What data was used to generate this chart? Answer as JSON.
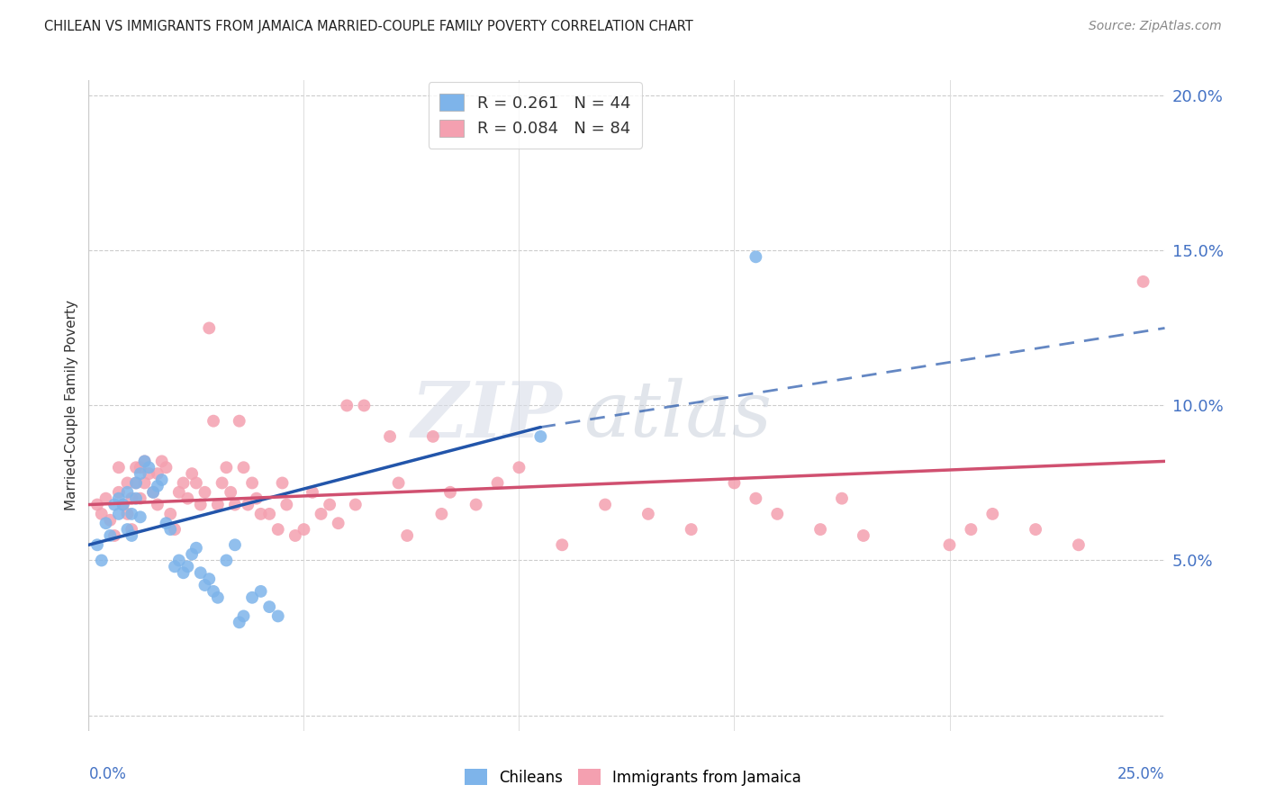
{
  "title": "CHILEAN VS IMMIGRANTS FROM JAMAICA MARRIED-COUPLE FAMILY POVERTY CORRELATION CHART",
  "source": "Source: ZipAtlas.com",
  "ylabel": "Married-Couple Family Poverty",
  "xlim": [
    0.0,
    0.25
  ],
  "ylim": [
    -0.005,
    0.205
  ],
  "plot_ylim": [
    0.0,
    0.2
  ],
  "yticks": [
    0.05,
    0.1,
    0.15,
    0.2
  ],
  "ytick_labels": [
    "5.0%",
    "10.0%",
    "15.0%",
    "20.0%"
  ],
  "chilean_color": "#7eb4ea",
  "jamaica_color": "#f4a0b0",
  "trendline_chilean_color": "#2255aa",
  "trendline_jamaica_color": "#d05070",
  "watermark_zip": "ZIP",
  "watermark_atlas": "atlas",
  "chilean_R": 0.261,
  "chilean_N": 44,
  "jamaica_R": 0.084,
  "jamaica_N": 84,
  "trend_chilean_x0": 0.0,
  "trend_chilean_y0": 0.055,
  "trend_chilean_x1": 0.105,
  "trend_chilean_y1": 0.093,
  "trend_chilean_dash_x1": 0.25,
  "trend_chilean_dash_y1": 0.125,
  "trend_jamaica_x0": 0.0,
  "trend_jamaica_y0": 0.068,
  "trend_jamaica_x1": 0.25,
  "trend_jamaica_y1": 0.082,
  "chilean_x": [
    0.002,
    0.003,
    0.004,
    0.005,
    0.006,
    0.007,
    0.007,
    0.008,
    0.009,
    0.009,
    0.01,
    0.01,
    0.011,
    0.011,
    0.012,
    0.012,
    0.013,
    0.014,
    0.015,
    0.016,
    0.017,
    0.018,
    0.019,
    0.02,
    0.021,
    0.022,
    0.023,
    0.024,
    0.025,
    0.026,
    0.027,
    0.028,
    0.029,
    0.03,
    0.032,
    0.034,
    0.035,
    0.036,
    0.038,
    0.04,
    0.042,
    0.044,
    0.105,
    0.155
  ],
  "chilean_y": [
    0.055,
    0.05,
    0.062,
    0.058,
    0.068,
    0.065,
    0.07,
    0.068,
    0.072,
    0.06,
    0.058,
    0.065,
    0.07,
    0.075,
    0.064,
    0.078,
    0.082,
    0.08,
    0.072,
    0.074,
    0.076,
    0.062,
    0.06,
    0.048,
    0.05,
    0.046,
    0.048,
    0.052,
    0.054,
    0.046,
    0.042,
    0.044,
    0.04,
    0.038,
    0.05,
    0.055,
    0.03,
    0.032,
    0.038,
    0.04,
    0.035,
    0.032,
    0.09,
    0.148
  ],
  "jamaica_x": [
    0.002,
    0.003,
    0.004,
    0.005,
    0.006,
    0.007,
    0.007,
    0.008,
    0.009,
    0.009,
    0.01,
    0.01,
    0.011,
    0.011,
    0.012,
    0.012,
    0.013,
    0.013,
    0.014,
    0.015,
    0.016,
    0.016,
    0.017,
    0.018,
    0.019,
    0.02,
    0.021,
    0.022,
    0.023,
    0.024,
    0.025,
    0.026,
    0.027,
    0.028,
    0.029,
    0.03,
    0.031,
    0.032,
    0.033,
    0.034,
    0.035,
    0.036,
    0.037,
    0.038,
    0.039,
    0.04,
    0.042,
    0.044,
    0.045,
    0.046,
    0.048,
    0.05,
    0.052,
    0.054,
    0.056,
    0.058,
    0.06,
    0.062,
    0.064,
    0.07,
    0.072,
    0.074,
    0.08,
    0.082,
    0.084,
    0.09,
    0.095,
    0.1,
    0.11,
    0.12,
    0.13,
    0.14,
    0.15,
    0.155,
    0.16,
    0.17,
    0.175,
    0.18,
    0.2,
    0.205,
    0.21,
    0.22,
    0.23,
    0.245
  ],
  "jamaica_y": [
    0.068,
    0.065,
    0.07,
    0.063,
    0.058,
    0.072,
    0.08,
    0.068,
    0.075,
    0.065,
    0.06,
    0.07,
    0.075,
    0.08,
    0.07,
    0.08,
    0.075,
    0.082,
    0.078,
    0.072,
    0.078,
    0.068,
    0.082,
    0.08,
    0.065,
    0.06,
    0.072,
    0.075,
    0.07,
    0.078,
    0.075,
    0.068,
    0.072,
    0.125,
    0.095,
    0.068,
    0.075,
    0.08,
    0.072,
    0.068,
    0.095,
    0.08,
    0.068,
    0.075,
    0.07,
    0.065,
    0.065,
    0.06,
    0.075,
    0.068,
    0.058,
    0.06,
    0.072,
    0.065,
    0.068,
    0.062,
    0.1,
    0.068,
    0.1,
    0.09,
    0.075,
    0.058,
    0.09,
    0.065,
    0.072,
    0.068,
    0.075,
    0.08,
    0.055,
    0.068,
    0.065,
    0.06,
    0.075,
    0.07,
    0.065,
    0.06,
    0.07,
    0.058,
    0.055,
    0.06,
    0.065,
    0.06,
    0.055,
    0.14
  ]
}
